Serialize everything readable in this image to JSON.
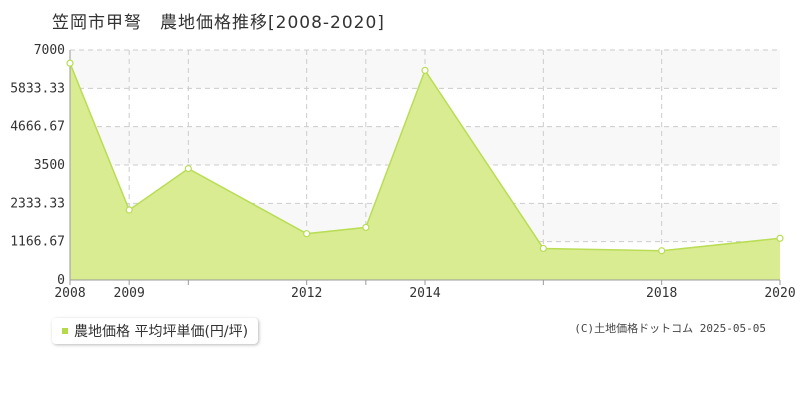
{
  "title": "笠岡市甲弩　農地価格推移[2008-2020]",
  "legend": {
    "label": "農地価格 平均坪単価(円/坪)"
  },
  "copyright": "(C)土地価格ドットコム 2025-05-05",
  "colors": {
    "area": "#d9ec91",
    "line": "#b9dd55",
    "band": "#f8f8f8",
    "grid": "#cccccc",
    "axis": "#999999"
  },
  "chart_data": {
    "type": "area",
    "x": [
      2008,
      2009,
      2010,
      2012,
      2013,
      2014,
      2016,
      2018,
      2020
    ],
    "values": [
      6600,
      2130,
      3390,
      1410,
      1600,
      6380,
      960,
      890,
      1270
    ],
    "ylim": [
      0,
      7000
    ],
    "xlim": [
      2008,
      2020
    ],
    "y_ticks": [
      "0",
      "1166.67",
      "2333.33",
      "3500",
      "4666.67",
      "5833.33",
      "7000"
    ],
    "x_ticks": [
      "2008",
      "2009",
      "2012",
      "2014",
      "2018",
      "2020"
    ],
    "grid": true,
    "legend_position": "bottom-left"
  }
}
